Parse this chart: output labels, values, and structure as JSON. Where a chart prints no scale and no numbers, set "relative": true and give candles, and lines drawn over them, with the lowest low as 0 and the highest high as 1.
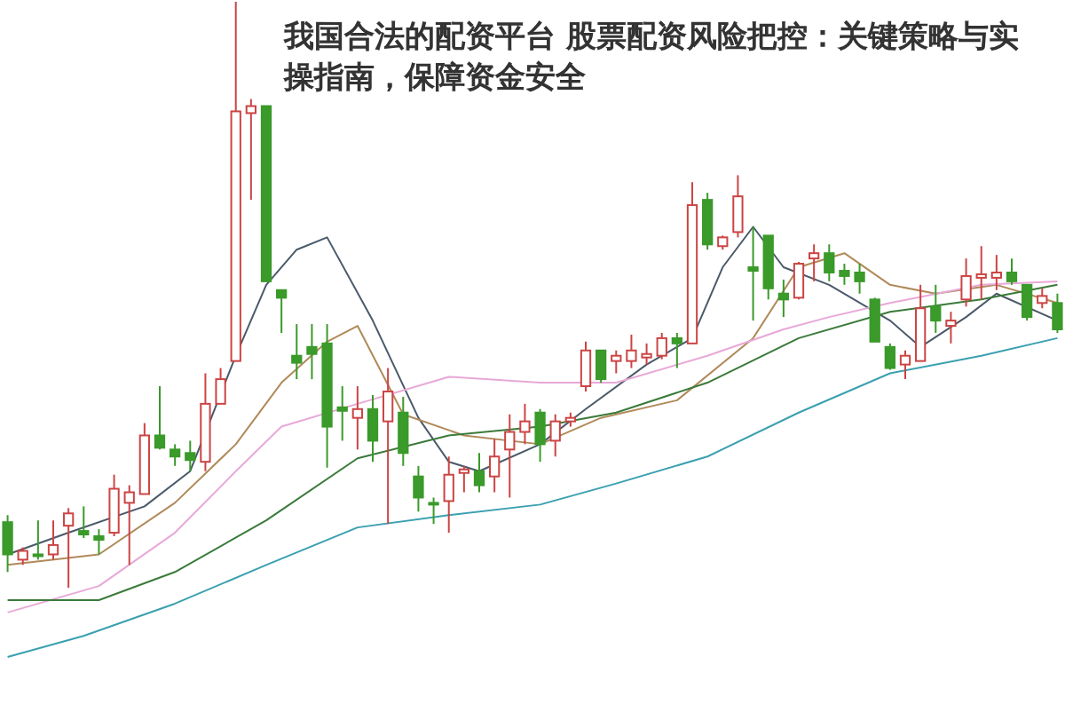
{
  "chart_data": {
    "type": "candlestick",
    "title": "我国合法的配资平台 股票配资风险把控：关键策略与实操指南，保障资金安全",
    "relative": true,
    "categories": [
      null,
      null,
      null,
      null,
      null,
      null,
      null,
      null,
      null,
      null,
      null,
      null,
      null,
      null,
      null,
      null,
      null,
      null,
      null,
      null,
      null,
      null,
      null,
      null,
      null,
      null,
      null,
      null,
      null,
      null,
      null,
      null,
      null,
      null,
      null,
      null,
      null,
      null,
      null,
      null,
      null,
      null,
      null,
      null,
      null,
      null,
      null,
      null,
      null,
      null,
      null,
      null,
      null,
      null,
      null,
      null,
      null,
      null,
      null,
      null,
      null,
      null,
      null,
      null,
      null,
      null,
      null,
      null,
      null,
      null
    ],
    "ohlc": [
      [
        0.112,
        0.124,
        0.027,
        0.057
      ],
      [
        0.048,
        0.069,
        0.039,
        0.063
      ],
      [
        0.057,
        0.115,
        0.048,
        0.054
      ],
      [
        0.057,
        0.115,
        0.048,
        0.073
      ],
      [
        0.106,
        0.136,
        0,
        0.127
      ],
      [
        0.097,
        0.139,
        0.085,
        0.091
      ],
      [
        0.088,
        0.1,
        0.057,
        0.082
      ],
      [
        0.094,
        0.193,
        0.088,
        0.169
      ],
      [
        0.145,
        0.175,
        0.039,
        0.163
      ],
      [
        0.16,
        0.281,
        0.16,
        0.26
      ],
      [
        0.26,
        0.344,
        0.236,
        0.239
      ],
      [
        0.236,
        0.245,
        0.208,
        0.224
      ],
      [
        0.23,
        0.251,
        0.199,
        0.218
      ],
      [
        0.215,
        0.366,
        0.199,
        0.314
      ],
      [
        0.314,
        0.375,
        0.314,
        0.356
      ],
      [
        0.387,
        1,
        0.387,
        0.813
      ],
      [
        0.81,
        0.834,
        0.662,
        0.822
      ],
      [
        0.822,
        0.822,
        0.523,
        0.523
      ],
      [
        0.508,
        0.508,
        0.435,
        0.495
      ],
      [
        0.396,
        0.45,
        0.356,
        0.384
      ],
      [
        0.411,
        0.45,
        0.356,
        0.399
      ],
      [
        0.417,
        0.45,
        0.205,
        0.275
      ],
      [
        0.308,
        0.344,
        0.251,
        0.302
      ],
      [
        0.29,
        0.344,
        0.236,
        0.305
      ],
      [
        0.305,
        0.329,
        0.215,
        0.251
      ],
      [
        0.284,
        0.375,
        0.109,
        0.335
      ],
      [
        0.299,
        0.326,
        0.208,
        0.23
      ],
      [
        0.19,
        0.208,
        0.13,
        0.154
      ],
      [
        0.145,
        0.154,
        0.109,
        0.142
      ],
      [
        0.148,
        0.224,
        0.094,
        0.193
      ],
      [
        0.196,
        0.208,
        0.163,
        0.202
      ],
      [
        0.199,
        0.23,
        0.163,
        0.175
      ],
      [
        0.19,
        0.254,
        0.163,
        0.224
      ],
      [
        0.236,
        0.296,
        0.154,
        0.266
      ],
      [
        0.266,
        0.314,
        0.245,
        0.284
      ],
      [
        0.299,
        0.305,
        0.215,
        0.245
      ],
      [
        0.251,
        0.296,
        0.224,
        0.284
      ],
      [
        0.284,
        0.299,
        0.275,
        0.29
      ],
      [
        0.344,
        0.42,
        0.335,
        0.405
      ],
      [
        0.405,
        0.405,
        0.35,
        0.356
      ],
      [
        0.387,
        0.405,
        0.366,
        0.396
      ],
      [
        0.387,
        0.432,
        0.375,
        0.405
      ],
      [
        0.393,
        0.417,
        0.381,
        0.399
      ],
      [
        0.396,
        0.435,
        0.39,
        0.426
      ],
      [
        0.426,
        0.435,
        0.375,
        0.417
      ],
      [
        0.417,
        0.692,
        0.417,
        0.653
      ],
      [
        0.662,
        0.674,
        0.577,
        0.586
      ],
      [
        0.583,
        0.601,
        0.577,
        0.598
      ],
      [
        0.607,
        0.704,
        0.598,
        0.668
      ],
      [
        0.547,
        0.616,
        0.456,
        0.541
      ],
      [
        0.601,
        0.601,
        0.492,
        0.511
      ],
      [
        0.502,
        0.526,
        0.462,
        0.492
      ],
      [
        0.495,
        0.556,
        0.492,
        0.553
      ],
      [
        0.562,
        0.586,
        0.523,
        0.571
      ],
      [
        0.571,
        0.586,
        0.523,
        0.538
      ],
      [
        0.541,
        0.553,
        0.517,
        0.532
      ],
      [
        0.538,
        0.553,
        0.502,
        0.523
      ],
      [
        0.492,
        0.495,
        0.42,
        0.42
      ],
      [
        0.411,
        0.417,
        0.372,
        0.375
      ],
      [
        0.381,
        0.405,
        0.356,
        0.396
      ],
      [
        0.387,
        0.517,
        0.387,
        0.477
      ],
      [
        0.48,
        0.517,
        0.435,
        0.456
      ],
      [
        0.447,
        0.471,
        0.417,
        0.456
      ],
      [
        0.492,
        0.562,
        0.48,
        0.532
      ],
      [
        0.529,
        0.583,
        0.492,
        0.535
      ],
      [
        0.529,
        0.568,
        0.508,
        0.538
      ],
      [
        0.538,
        0.562,
        0.517,
        0.523
      ],
      [
        0.517,
        0.517,
        0.456,
        0.462
      ],
      [
        0.486,
        0.511,
        0.477,
        0.498
      ],
      [
        0.486,
        0.502,
        0.435,
        0.441
      ]
    ],
    "colors": [
      "#3a9a2a",
      "#cc4444",
      "#3a9a2a",
      "#cc4444",
      "#cc4444",
      "#3a9a2a",
      "#3a9a2a",
      "#cc4444",
      "#cc4444",
      "#cc4444",
      "#3a9a2a",
      "#3a9a2a",
      "#3a9a2a",
      "#cc4444",
      "#cc4444",
      "#cc4444",
      "#cc4444",
      "#3a9a2a",
      "#3a9a2a",
      "#3a9a2a",
      "#3a9a2a",
      "#3a9a2a",
      "#3a9a2a",
      "#cc4444",
      "#3a9a2a",
      "#cc4444",
      "#3a9a2a",
      "#3a9a2a",
      "#3a9a2a",
      "#cc4444",
      "#cc4444",
      "#3a9a2a",
      "#cc4444",
      "#cc4444",
      "#cc4444",
      "#3a9a2a",
      "#cc4444",
      "#cc4444",
      "#cc4444",
      "#3a9a2a",
      "#cc4444",
      "#cc4444",
      "#cc4444",
      "#cc4444",
      "#3a9a2a",
      "#cc4444",
      "#3a9a2a",
      "#cc4444",
      "#cc4444",
      "#3a9a2a",
      "#3a9a2a",
      "#3a9a2a",
      "#cc4444",
      "#cc4444",
      "#3a9a2a",
      "#3a9a2a",
      "#3a9a2a",
      "#3a9a2a",
      "#3a9a2a",
      "#cc4444",
      "#cc4444",
      "#3a9a2a",
      "#cc4444",
      "#cc4444",
      "#cc4444",
      "#cc4444",
      "#3a9a2a",
      "#3a9a2a",
      "#cc4444",
      "#3a9a2a"
    ],
    "series": [
      {
        "type": "line",
        "color": "#4a5a6a",
        "values": [
          0.057,
          null,
          null,
          null,
          0.094,
          null,
          null,
          null,
          null,
          0.139,
          null,
          null,
          0.199,
          null,
          null,
          0.396,
          null,
          0.517,
          null,
          0.577,
          null,
          0.598,
          null,
          null,
          0.456,
          null,
          null,
          0.29,
          null,
          0.215,
          null,
          0.199,
          null,
          null,
          null,
          0.245,
          null,
          null,
          0.305,
          null,
          null,
          null,
          0.381,
          null,
          null,
          0.426,
          null,
          0.547,
          null,
          0.616,
          null,
          0.547,
          null,
          null,
          0.517,
          null,
          null,
          null,
          0.456,
          null,
          0.411,
          null,
          null,
          0.462,
          null,
          0.502,
          null,
          null,
          null,
          0.456
        ]
      },
      {
        "type": "line",
        "color": "#b08a5a",
        "values": [
          0.039,
          null,
          null,
          null,
          null,
          null,
          0.057,
          null,
          null,
          null,
          null,
          0.145,
          null,
          null,
          null,
          0.245,
          null,
          null,
          0.35,
          null,
          null,
          0.42,
          null,
          0.447,
          null,
          null,
          0.296,
          null,
          null,
          null,
          0.26,
          null,
          null,
          null,
          null,
          0.245,
          null,
          null,
          null,
          0.29,
          null,
          null,
          null,
          null,
          0.32,
          null,
          null,
          null,
          null,
          0.426,
          null,
          null,
          0.547,
          null,
          null,
          0.571,
          null,
          null,
          0.517,
          null,
          null,
          0.502,
          null,
          null,
          null,
          0.517,
          null,
          null,
          null,
          0.486
        ]
      },
      {
        "type": "line",
        "color": "#e8a8d8",
        "values": [
          -0.042,
          null,
          null,
          null,
          null,
          null,
          0.003,
          null,
          null,
          null,
          null,
          0.094,
          null,
          null,
          null,
          0.199,
          null,
          null,
          0.275,
          null,
          null,
          null,
          null,
          0.314,
          null,
          null,
          null,
          null,
          null,
          0.36,
          null,
          null,
          null,
          null,
          null,
          0.35,
          null,
          null,
          null,
          null,
          0.35,
          null,
          null,
          null,
          null,
          null,
          0.396,
          null,
          null,
          null,
          null,
          0.441,
          null,
          null,
          0.462,
          null,
          null,
          null,
          0.486,
          null,
          null,
          null,
          null,
          null,
          0.517,
          null,
          null,
          null,
          null,
          0.523
        ]
      },
      {
        "type": "line",
        "color": "#3a7a3a",
        "values": [
          -0.021,
          null,
          null,
          null,
          null,
          null,
          -0.021,
          null,
          null,
          null,
          null,
          0.027,
          null,
          null,
          null,
          null,
          null,
          0.115,
          null,
          null,
          null,
          null,
          null,
          0.221,
          null,
          null,
          null,
          null,
          null,
          0.26,
          null,
          null,
          null,
          null,
          null,
          0.275,
          null,
          null,
          null,
          null,
          0.299,
          null,
          null,
          null,
          null,
          null,
          0.35,
          null,
          null,
          null,
          null,
          null,
          0.426,
          null,
          null,
          null,
          null,
          null,
          0.471,
          null,
          null,
          null,
          null,
          null,
          0.492,
          null,
          null,
          null,
          null,
          0.517
        ]
      },
      {
        "type": "line",
        "color": "#3aa0b0",
        "values": [
          -0.118,
          null,
          null,
          null,
          null,
          -0.082,
          null,
          null,
          null,
          null,
          null,
          -0.027,
          null,
          null,
          null,
          null,
          null,
          0.039,
          null,
          null,
          null,
          null,
          null,
          0.103,
          null,
          null,
          null,
          null,
          null,
          0.124,
          null,
          null,
          null,
          null,
          null,
          0.142,
          null,
          null,
          null,
          null,
          0.178,
          null,
          null,
          null,
          null,
          null,
          0.224,
          null,
          null,
          null,
          null,
          null,
          0.299,
          null,
          null,
          null,
          null,
          null,
          0.366,
          null,
          null,
          null,
          null,
          null,
          0.396,
          null,
          null,
          null,
          null,
          0.426
        ]
      }
    ]
  }
}
